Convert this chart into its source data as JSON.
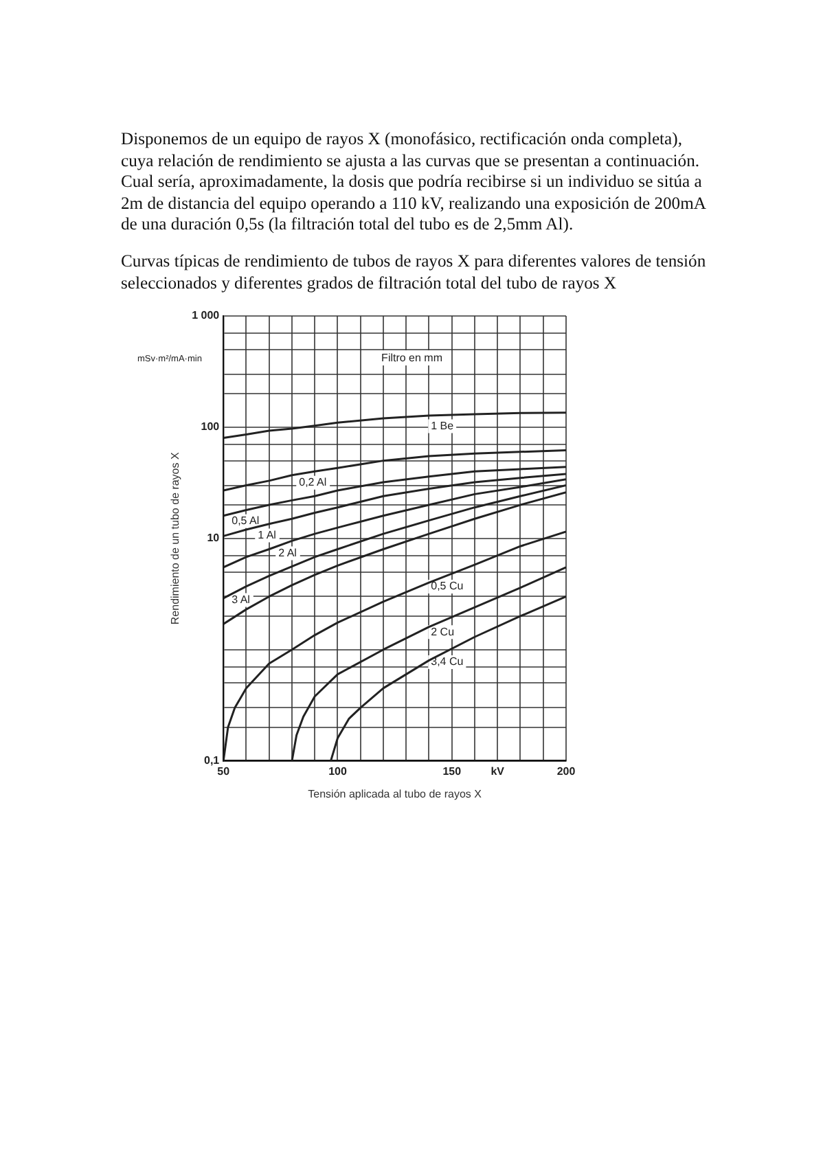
{
  "chart_data": {
    "type": "line",
    "title": "Curvas típicas de rendimiento de tubos de rayos X para diferentes valores de tensión seleccionados y diferentes grados de filtración total del tubo de rayos X",
    "xlabel": "Tensión aplicada al tubo de rayos X",
    "ylabel": "Rendimiento de un tubo de rayos X",
    "legend_title": "Filtro en mm",
    "annotations": [
      "Disponemos de un equipo de rayos X (monofásico, rectificación onda completa), cuya relación de rendimiento se ajusta a las curvas que se presentan a continuación. Cual sería, aproximadamente, la dosis que podría recibirse si un individuo se sitúa a 2m de distancia del equipo operando a 110 kV, realizando una exposición de 200mA de una duración 0,5s (la filtración total del tubo es de 2,5mm Al).",
      "mSv·m²/mA·min"
    ],
    "xlim": [
      50,
      200
    ],
    "xticks": [
      50,
      {
        "value": 60,
        "label": null
      },
      {
        "value": 70,
        "label": null
      },
      {
        "value": 80,
        "label": null
      },
      {
        "value": 90,
        "label": null
      },
      100,
      {
        "value": 110,
        "label": null
      },
      {
        "value": 120,
        "label": null
      },
      {
        "value": 130,
        "label": null
      },
      {
        "value": 140,
        "label": null
      },
      150,
      {
        "value": 160,
        "label": null
      },
      {
        "value": 170,
        "label": "kV"
      },
      {
        "value": 180,
        "label": null
      },
      {
        "value": 190,
        "label": null
      },
      200
    ],
    "ylim": [
      0.1,
      1000
    ],
    "log": "y",
    "yticks": [
      {
        "value": 0.1,
        "label": "0,1"
      },
      {
        "value": 0.2,
        "label": null
      },
      {
        "value": 0.3,
        "label": null
      },
      {
        "value": 0.5,
        "label": null
      },
      {
        "value": 0.7,
        "label": null
      },
      {
        "value": 1,
        "label": null
      },
      {
        "value": 2,
        "label": null
      },
      {
        "value": 3,
        "label": null
      },
      {
        "value": 5,
        "label": null
      },
      {
        "value": 7,
        "label": null
      },
      10,
      {
        "value": 20,
        "label": null
      },
      {
        "value": 30,
        "label": null
      },
      {
        "value": 50,
        "label": null
      },
      {
        "value": 70,
        "label": null
      },
      100,
      {
        "value": 200,
        "label": null
      },
      {
        "value": 300,
        "label": null
      },
      {
        "value": 500,
        "label": null
      },
      {
        "value": 700,
        "label": null
      },
      {
        "value": 1000,
        "label": "1 000"
      }
    ],
    "grid": true,
    "legend": false,
    "marker": "none",
    "line_style": "solid",
    "series": [
      {
        "name": "1 Be",
        "color": "#222222",
        "x": [
          50,
          60,
          70,
          80,
          90,
          100,
          120,
          140,
          160,
          180,
          200
        ],
        "values": [
          80,
          86,
          93,
          97,
          103,
          110,
          120,
          127,
          131,
          134,
          135
        ]
      },
      {
        "name": "0,2 Al",
        "color": "#222222",
        "x": [
          50,
          60,
          70,
          80,
          90,
          100,
          120,
          140,
          160,
          180,
          200
        ],
        "values": [
          27,
          30,
          33,
          37,
          40,
          43,
          50,
          55,
          58,
          60,
          62
        ]
      },
      {
        "name": "0,5 Al",
        "color": "#222222",
        "x": [
          50,
          60,
          70,
          80,
          90,
          100,
          120,
          140,
          160,
          180,
          200
        ],
        "values": [
          16,
          18,
          20,
          22,
          24,
          27,
          32,
          36,
          40,
          42,
          44
        ]
      },
      {
        "name": "1 Al",
        "color": "#222222",
        "x": [
          50,
          60,
          70,
          80,
          90,
          100,
          120,
          140,
          160,
          180,
          200
        ],
        "values": [
          10.5,
          12,
          13.5,
          15,
          17,
          19,
          24,
          28,
          32,
          35,
          38
        ]
      },
      {
        "name": "2 Al",
        "color": "#222222",
        "x": [
          50,
          60,
          70,
          80,
          90,
          100,
          120,
          140,
          160,
          180,
          200
        ],
        "values": [
          5.5,
          6.8,
          8,
          9.5,
          11,
          12.5,
          16,
          20,
          25,
          29,
          34
        ]
      },
      {
        "name": "3 Al",
        "color": "#222222",
        "x": [
          50,
          60,
          70,
          80,
          90,
          100,
          120,
          140,
          160,
          180,
          200
        ],
        "values": [
          2.9,
          3.7,
          4.6,
          5.6,
          6.8,
          8,
          11,
          14.5,
          19,
          24,
          30
        ]
      },
      {
        "color": "#222222",
        "x": [
          50,
          60,
          70,
          80,
          90,
          100,
          120,
          140,
          160,
          180,
          200
        ],
        "values": [
          1.7,
          2.3,
          3,
          3.8,
          4.7,
          5.7,
          8,
          11,
          15,
          20,
          26
        ]
      },
      {
        "name": "0,5 Cu",
        "color": "#222222",
        "x": [
          50,
          52,
          55,
          60,
          70,
          80,
          90,
          100,
          120,
          140,
          160,
          180,
          200
        ],
        "values": [
          0.1,
          0.2,
          0.3,
          0.45,
          0.75,
          1,
          1.35,
          1.75,
          2.7,
          4,
          5.8,
          8.5,
          11.5
        ]
      },
      {
        "name": "2 Cu",
        "color": "#222222",
        "x": [
          80,
          82,
          85,
          90,
          100,
          120,
          140,
          160,
          180,
          200
        ],
        "values": [
          0.1,
          0.17,
          0.25,
          0.38,
          0.6,
          1,
          1.6,
          2.4,
          3.6,
          5.5
        ]
      },
      {
        "name": "3,4 Cu",
        "color": "#222222",
        "x": [
          97,
          100,
          105,
          110,
          120,
          140,
          160,
          180,
          200
        ],
        "values": [
          0.1,
          0.16,
          0.24,
          0.3,
          0.45,
          0.8,
          1.3,
          2,
          3
        ]
      }
    ]
  }
}
